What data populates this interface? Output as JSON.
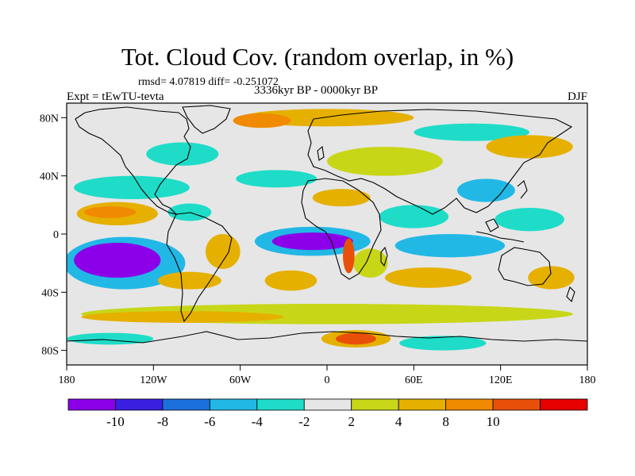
{
  "title": "Tot. Cloud Cov. (random overlap, in %)",
  "stats": "rmsd= 4.07819 diff= -0.251072",
  "expt": "Expt = tEwTU-tevta",
  "period": "3336kyr BP - 0000kyr BP",
  "season": "DJF",
  "map": {
    "lon_range": [
      -180,
      180
    ],
    "lat_range": [
      -90,
      90
    ],
    "x_ticks": [
      {
        "value": -180,
        "label": "180"
      },
      {
        "value": -120,
        "label": "120W"
      },
      {
        "value": -60,
        "label": "60W"
      },
      {
        "value": 0,
        "label": "0"
      },
      {
        "value": 60,
        "label": "60E"
      },
      {
        "value": 120,
        "label": "120E"
      },
      {
        "value": 180,
        "label": "180"
      }
    ],
    "y_ticks": [
      {
        "value": 80,
        "label": "80N"
      },
      {
        "value": 40,
        "label": "40N"
      },
      {
        "value": 0,
        "label": "0"
      },
      {
        "value": -40,
        "label": "40S"
      },
      {
        "value": -80,
        "label": "80S"
      }
    ],
    "background_color": "#e6e6e6",
    "anomaly_regions": [
      {
        "name": "s-pacific",
        "lon": -145,
        "lat": -18,
        "rlon": 30,
        "rlat": 12,
        "level": -11
      },
      {
        "name": "s-pacific-ring",
        "lon": -140,
        "lat": -20,
        "rlon": 42,
        "rlat": 18,
        "level": -5
      },
      {
        "name": "trop-atlantic",
        "lon": -10,
        "lat": -5,
        "rlon": 28,
        "rlat": 6,
        "level": -11
      },
      {
        "name": "trop-atlantic-ring",
        "lon": -10,
        "lat": -5,
        "rlon": 40,
        "rlat": 10,
        "level": -5
      },
      {
        "name": "n-pacific-red",
        "lon": -150,
        "lat": 15,
        "rlon": 18,
        "rlat": 4,
        "level": 9
      },
      {
        "name": "n-pacific-orange",
        "lon": -145,
        "lat": 14,
        "rlon": 28,
        "rlat": 8,
        "level": 5
      },
      {
        "name": "amazon-orange",
        "lon": -72,
        "lat": -12,
        "rlon": 12,
        "rlat": 12,
        "level": 6
      },
      {
        "name": "n-pacific-cyan",
        "lon": -135,
        "lat": 32,
        "rlon": 40,
        "rlat": 8,
        "level": -4
      },
      {
        "name": "n-atlantic-cyan",
        "lon": -35,
        "lat": 38,
        "rlon": 28,
        "rlat": 6,
        "level": -3
      },
      {
        "name": "s-atlantic-orange",
        "lon": -25,
        "lat": -32,
        "rlon": 18,
        "rlat": 7,
        "level": 5
      },
      {
        "name": "s-indian-blue",
        "lon": 85,
        "lat": -8,
        "rlon": 38,
        "rlat": 8,
        "level": -6
      },
      {
        "name": "n-indian-cyan",
        "lon": 60,
        "lat": 12,
        "rlon": 24,
        "rlat": 8,
        "level": -4
      },
      {
        "name": "w-pacific-cyan",
        "lon": 140,
        "lat": 10,
        "rlon": 24,
        "rlat": 8,
        "level": -4
      },
      {
        "name": "china-blue",
        "lon": 110,
        "lat": 30,
        "rlon": 20,
        "rlat": 8,
        "level": -6
      },
      {
        "name": "s-indian-orange",
        "lon": 70,
        "lat": -30,
        "rlon": 30,
        "rlat": 7,
        "level": 5
      },
      {
        "name": "australia-orange",
        "lon": 155,
        "lat": -30,
        "rlon": 16,
        "rlat": 8,
        "level": 5
      },
      {
        "name": "e-pacific-orange",
        "lon": -95,
        "lat": -32,
        "rlon": 22,
        "rlat": 6,
        "level": 5
      },
      {
        "name": "s-ocean-orange",
        "lon": -100,
        "lat": -57,
        "rlon": 70,
        "rlat": 4,
        "level": 5
      },
      {
        "name": "s-ocean-yellow",
        "lon": 0,
        "lat": -55,
        "rlon": 170,
        "rlat": 7,
        "level": 3
      },
      {
        "name": "antarctic-red",
        "lon": 20,
        "lat": -72,
        "rlon": 14,
        "rlat": 4,
        "level": 10
      },
      {
        "name": "antarctic-orange",
        "lon": 20,
        "lat": -72,
        "rlon": 24,
        "rlat": 6,
        "level": 6
      },
      {
        "name": "antarctic-cyan",
        "lon": -150,
        "lat": -72,
        "rlon": 30,
        "rlat": 4,
        "level": -4
      },
      {
        "name": "antarctic-cyan-2",
        "lon": 80,
        "lat": -75,
        "rlon": 30,
        "rlat": 5,
        "level": -3
      },
      {
        "name": "arctic-red",
        "lon": -45,
        "lat": 78,
        "rlon": 20,
        "rlat": 5,
        "level": 9
      },
      {
        "name": "arctic-orange",
        "lon": 0,
        "lat": 80,
        "rlon": 60,
        "rlat": 6,
        "level": 5
      },
      {
        "name": "arctic-cyan",
        "lon": 100,
        "lat": 70,
        "rlon": 40,
        "rlat": 6,
        "level": -3
      },
      {
        "name": "siberia-orange",
        "lon": 140,
        "lat": 60,
        "rlon": 30,
        "rlat": 8,
        "level": 5
      },
      {
        "name": "n-america-cyan",
        "lon": -100,
        "lat": 55,
        "rlon": 25,
        "rlat": 8,
        "level": -4
      },
      {
        "name": "africa-yellow",
        "lon": 30,
        "lat": -20,
        "rlon": 12,
        "rlat": 10,
        "level": 3
      },
      {
        "name": "s-africa-red",
        "lon": 15,
        "lat": -15,
        "rlon": 4,
        "rlat": 12,
        "level": 10
      },
      {
        "name": "europe-yellow",
        "lon": 40,
        "lat": 50,
        "rlon": 40,
        "rlat": 10,
        "level": 3
      },
      {
        "name": "e-pacific-cyan",
        "lon": -95,
        "lat": 15,
        "rlon": 15,
        "rlat": 6,
        "level": -3
      },
      {
        "name": "sahara-orange",
        "lon": 10,
        "lat": 25,
        "rlon": 20,
        "rlat": 6,
        "level": 4
      }
    ]
  },
  "colorbar": {
    "levels": [
      -10,
      -8,
      -6,
      -4,
      -2,
      2,
      4,
      8,
      10
    ],
    "labels": [
      "-10",
      "-8",
      "-6",
      "-4",
      "-2",
      "2",
      "4",
      "8",
      "10"
    ],
    "colors": [
      "#8b00e8",
      "#3a1fe0",
      "#1d6fdc",
      "#22b8e6",
      "#1edcc8",
      "#e6e6e6",
      "#c8d618",
      "#e6b000",
      "#f08a00",
      "#e8500a",
      "#e60000"
    ]
  }
}
